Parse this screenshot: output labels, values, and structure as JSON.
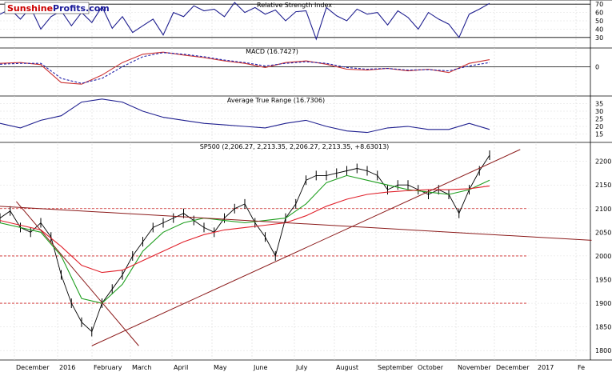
{
  "brand": {
    "name_part1": "Sunshine",
    "name_part2": "Profits.com",
    "color_part1": "#cc0000",
    "color_part2": "#1a1a99"
  },
  "colors": {
    "price": "#000000",
    "rsi": "#1f1f8f",
    "macd": "#cc3333",
    "signal": "#2222aa",
    "atr": "#1f1f8f",
    "sma_short": "#1e9e1e",
    "sma_long": "#e0202a",
    "trendline": "#8b1a1a",
    "level": "#cc2222",
    "grid": "#dddddd"
  },
  "chart_data": [
    {
      "type": "line",
      "title": "Relative Strength Index",
      "ylim": [
        25,
        75
      ],
      "y_ticks": [
        30,
        40,
        50,
        60,
        70
      ],
      "reference_levels": [
        30,
        70
      ],
      "series": [
        {
          "x": [
            0,
            5,
            10,
            15,
            20,
            25,
            30,
            35,
            40,
            45,
            50,
            55,
            60,
            65,
            70,
            75,
            80,
            85,
            90,
            95,
            100,
            105,
            110,
            115,
            120,
            125,
            130,
            135,
            140,
            145,
            150,
            155,
            160,
            165,
            170,
            175,
            180,
            185,
            190,
            195,
            200,
            205,
            210,
            215,
            220,
            225,
            230,
            235,
            240
          ],
          "values": [
            58,
            64,
            52,
            66,
            40,
            55,
            62,
            44,
            60,
            48,
            67,
            41,
            55,
            36,
            44,
            52,
            33,
            60,
            55,
            68,
            62,
            64,
            55,
            72,
            60,
            66,
            58,
            63,
            50,
            61,
            62,
            28,
            66,
            56,
            50,
            64,
            58,
            60,
            45,
            62,
            54,
            40,
            60,
            52,
            46,
            30,
            58,
            64,
            71
          ]
        }
      ]
    },
    {
      "type": "line",
      "title": "MACD (16.7427)",
      "ylim": [
        -55,
        45
      ],
      "y_ticks": [
        0
      ],
      "series": [
        {
          "x": [
            0,
            10,
            20,
            30,
            40,
            50,
            60,
            70,
            80,
            90,
            100,
            110,
            120,
            130,
            140,
            150,
            160,
            170,
            180,
            190,
            200,
            210,
            220,
            230,
            240
          ],
          "values": [
            8,
            10,
            5,
            -38,
            -42,
            -20,
            10,
            30,
            35,
            28,
            22,
            14,
            8,
            -2,
            10,
            14,
            6,
            -6,
            -8,
            -4,
            -10,
            -6,
            -14,
            8,
            17
          ]
        },
        {
          "x": [
            0,
            10,
            20,
            30,
            40,
            50,
            60,
            70,
            80,
            90,
            100,
            110,
            120,
            130,
            140,
            150,
            160,
            170,
            180,
            190,
            200,
            210,
            220,
            230,
            240
          ],
          "values": [
            6,
            8,
            8,
            -28,
            -40,
            -28,
            0,
            24,
            34,
            30,
            24,
            16,
            10,
            2,
            8,
            12,
            8,
            -2,
            -6,
            -4,
            -8,
            -7,
            -10,
            2,
            10
          ]
        }
      ]
    },
    {
      "type": "line",
      "title": "Average True Range (16.7306)",
      "ylim": [
        10,
        40
      ],
      "y_ticks": [
        15,
        20,
        25,
        30,
        35
      ],
      "series": [
        {
          "x": [
            0,
            10,
            20,
            30,
            40,
            50,
            60,
            70,
            80,
            90,
            100,
            110,
            120,
            130,
            140,
            150,
            160,
            170,
            180,
            190,
            200,
            210,
            220,
            230,
            240
          ],
          "values": [
            22,
            19,
            24,
            27,
            36,
            38,
            36,
            30,
            26,
            24,
            22,
            21,
            20,
            19,
            22,
            24,
            20,
            17,
            16,
            19,
            20,
            18,
            18,
            22,
            18
          ]
        }
      ]
    },
    {
      "type": "line",
      "title": "SP500 (2,206.27, 2,213.35, 2,206.27, 2,213.35, +8.63013)",
      "ylim": [
        1780,
        2240
      ],
      "y_ticks": [
        1800,
        1850,
        1900,
        1950,
        2000,
        2050,
        2100,
        2150,
        2200
      ],
      "reference_levels": [
        1900,
        2000,
        2100
      ],
      "x_tick_labels": [
        "December",
        "2016",
        "February",
        "March",
        "April",
        "May",
        "June",
        "July",
        "August",
        "September",
        "October",
        "November",
        "December",
        "2017",
        "Fe"
      ],
      "series": [
        {
          "x": [
            0,
            5,
            10,
            15,
            20,
            25,
            30,
            35,
            40,
            45,
            50,
            55,
            60,
            65,
            70,
            75,
            80,
            85,
            90,
            95,
            100,
            105,
            110,
            115,
            120,
            125,
            130,
            135,
            140,
            145,
            150,
            155,
            160,
            165,
            170,
            175,
            180,
            185,
            190,
            195,
            200,
            205,
            210,
            215,
            220,
            225,
            230,
            235,
            240
          ],
          "values": [
            2080,
            2095,
            2060,
            2050,
            2070,
            2040,
            1960,
            1900,
            1860,
            1840,
            1900,
            1930,
            1960,
            2000,
            2030,
            2060,
            2070,
            2080,
            2090,
            2075,
            2060,
            2050,
            2080,
            2100,
            2110,
            2070,
            2040,
            2000,
            2080,
            2110,
            2160,
            2170,
            2170,
            2175,
            2180,
            2185,
            2180,
            2170,
            2140,
            2150,
            2150,
            2140,
            2130,
            2140,
            2130,
            2090,
            2140,
            2180,
            2213
          ]
        },
        {
          "x": [
            0,
            10,
            20,
            30,
            40,
            50,
            60,
            70,
            80,
            90,
            100,
            110,
            120,
            130,
            140,
            150,
            160,
            170,
            180,
            190,
            200,
            210,
            220,
            230,
            240
          ],
          "values": [
            2070,
            2060,
            2050,
            2000,
            1910,
            1900,
            1940,
            2010,
            2050,
            2070,
            2080,
            2075,
            2070,
            2075,
            2080,
            2110,
            2155,
            2170,
            2160,
            2150,
            2140,
            2135,
            2130,
            2140,
            2160
          ]
        },
        {
          "x": [
            0,
            10,
            20,
            30,
            40,
            50,
            60,
            70,
            80,
            90,
            100,
            110,
            120,
            130,
            140,
            150,
            160,
            170,
            180,
            190,
            200,
            210,
            220,
            230,
            240
          ],
          "values": [
            2075,
            2065,
            2055,
            2020,
            1980,
            1965,
            1970,
            1990,
            2010,
            2030,
            2045,
            2055,
            2060,
            2065,
            2070,
            2085,
            2105,
            2120,
            2130,
            2135,
            2138,
            2140,
            2140,
            2142,
            2148
          ]
        }
      ]
    }
  ]
}
